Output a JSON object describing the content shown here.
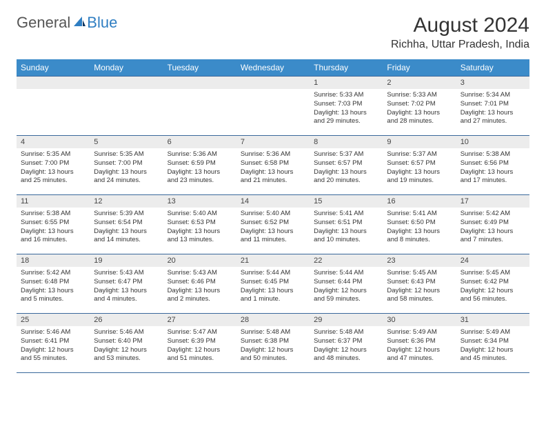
{
  "logo": {
    "part1": "General",
    "part2": "Blue"
  },
  "title": "August 2024",
  "location": "Richha, Uttar Pradesh, India",
  "colors": {
    "header_bg": "#3b8bc9",
    "header_text": "#ffffff",
    "row_border": "#38679a",
    "daynum_bg": "#ececec",
    "text": "#333333",
    "logo_gray": "#555555",
    "logo_blue": "#2f7ec2",
    "page_bg": "#ffffff"
  },
  "weekdays": [
    "Sunday",
    "Monday",
    "Tuesday",
    "Wednesday",
    "Thursday",
    "Friday",
    "Saturday"
  ],
  "layout": {
    "first_weekday_index": 4,
    "days_in_month": 31,
    "rows": 5,
    "cols": 7
  },
  "days": [
    {
      "n": 1,
      "sunrise": "5:33 AM",
      "sunset": "7:03 PM",
      "daylight": "13 hours and 29 minutes."
    },
    {
      "n": 2,
      "sunrise": "5:33 AM",
      "sunset": "7:02 PM",
      "daylight": "13 hours and 28 minutes."
    },
    {
      "n": 3,
      "sunrise": "5:34 AM",
      "sunset": "7:01 PM",
      "daylight": "13 hours and 27 minutes."
    },
    {
      "n": 4,
      "sunrise": "5:35 AM",
      "sunset": "7:00 PM",
      "daylight": "13 hours and 25 minutes."
    },
    {
      "n": 5,
      "sunrise": "5:35 AM",
      "sunset": "7:00 PM",
      "daylight": "13 hours and 24 minutes."
    },
    {
      "n": 6,
      "sunrise": "5:36 AM",
      "sunset": "6:59 PM",
      "daylight": "13 hours and 23 minutes."
    },
    {
      "n": 7,
      "sunrise": "5:36 AM",
      "sunset": "6:58 PM",
      "daylight": "13 hours and 21 minutes."
    },
    {
      "n": 8,
      "sunrise": "5:37 AM",
      "sunset": "6:57 PM",
      "daylight": "13 hours and 20 minutes."
    },
    {
      "n": 9,
      "sunrise": "5:37 AM",
      "sunset": "6:57 PM",
      "daylight": "13 hours and 19 minutes."
    },
    {
      "n": 10,
      "sunrise": "5:38 AM",
      "sunset": "6:56 PM",
      "daylight": "13 hours and 17 minutes."
    },
    {
      "n": 11,
      "sunrise": "5:38 AM",
      "sunset": "6:55 PM",
      "daylight": "13 hours and 16 minutes."
    },
    {
      "n": 12,
      "sunrise": "5:39 AM",
      "sunset": "6:54 PM",
      "daylight": "13 hours and 14 minutes."
    },
    {
      "n": 13,
      "sunrise": "5:40 AM",
      "sunset": "6:53 PM",
      "daylight": "13 hours and 13 minutes."
    },
    {
      "n": 14,
      "sunrise": "5:40 AM",
      "sunset": "6:52 PM",
      "daylight": "13 hours and 11 minutes."
    },
    {
      "n": 15,
      "sunrise": "5:41 AM",
      "sunset": "6:51 PM",
      "daylight": "13 hours and 10 minutes."
    },
    {
      "n": 16,
      "sunrise": "5:41 AM",
      "sunset": "6:50 PM",
      "daylight": "13 hours and 8 minutes."
    },
    {
      "n": 17,
      "sunrise": "5:42 AM",
      "sunset": "6:49 PM",
      "daylight": "13 hours and 7 minutes."
    },
    {
      "n": 18,
      "sunrise": "5:42 AM",
      "sunset": "6:48 PM",
      "daylight": "13 hours and 5 minutes."
    },
    {
      "n": 19,
      "sunrise": "5:43 AM",
      "sunset": "6:47 PM",
      "daylight": "13 hours and 4 minutes."
    },
    {
      "n": 20,
      "sunrise": "5:43 AM",
      "sunset": "6:46 PM",
      "daylight": "13 hours and 2 minutes."
    },
    {
      "n": 21,
      "sunrise": "5:44 AM",
      "sunset": "6:45 PM",
      "daylight": "13 hours and 1 minute."
    },
    {
      "n": 22,
      "sunrise": "5:44 AM",
      "sunset": "6:44 PM",
      "daylight": "12 hours and 59 minutes."
    },
    {
      "n": 23,
      "sunrise": "5:45 AM",
      "sunset": "6:43 PM",
      "daylight": "12 hours and 58 minutes."
    },
    {
      "n": 24,
      "sunrise": "5:45 AM",
      "sunset": "6:42 PM",
      "daylight": "12 hours and 56 minutes."
    },
    {
      "n": 25,
      "sunrise": "5:46 AM",
      "sunset": "6:41 PM",
      "daylight": "12 hours and 55 minutes."
    },
    {
      "n": 26,
      "sunrise": "5:46 AM",
      "sunset": "6:40 PM",
      "daylight": "12 hours and 53 minutes."
    },
    {
      "n": 27,
      "sunrise": "5:47 AM",
      "sunset": "6:39 PM",
      "daylight": "12 hours and 51 minutes."
    },
    {
      "n": 28,
      "sunrise": "5:48 AM",
      "sunset": "6:38 PM",
      "daylight": "12 hours and 50 minutes."
    },
    {
      "n": 29,
      "sunrise": "5:48 AM",
      "sunset": "6:37 PM",
      "daylight": "12 hours and 48 minutes."
    },
    {
      "n": 30,
      "sunrise": "5:49 AM",
      "sunset": "6:36 PM",
      "daylight": "12 hours and 47 minutes."
    },
    {
      "n": 31,
      "sunrise": "5:49 AM",
      "sunset": "6:34 PM",
      "daylight": "12 hours and 45 minutes."
    }
  ],
  "labels": {
    "sunrise": "Sunrise:",
    "sunset": "Sunset:",
    "daylight": "Daylight:"
  }
}
